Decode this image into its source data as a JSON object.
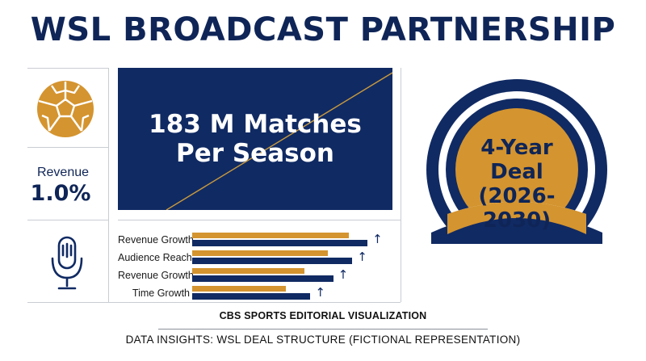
{
  "header": {
    "title": "WSL BROADCAST PARTNERSHIP"
  },
  "left_panel": {
    "ball_icon": "soccer-ball-icon",
    "revenue_label": "Revenue",
    "revenue_value": "1.0%",
    "mic_icon": "microphone-icon"
  },
  "stat_panel": {
    "line1": "183 M Matches",
    "line2": "Per Season"
  },
  "bars": [
    {
      "label": "Revenue Growth",
      "gold": 0.82,
      "navy": 0.92
    },
    {
      "label": "Audience Reach",
      "gold": 0.71,
      "navy": 0.84
    },
    {
      "label": "Revenue Growth",
      "gold": 0.59,
      "navy": 0.74
    },
    {
      "label": "Time Growth",
      "gold": 0.49,
      "navy": 0.62
    }
  ],
  "badge": {
    "line1": "4-Year",
    "line2": "Deal",
    "line3": "(2026-",
    "line4": "2030)"
  },
  "footer": {
    "main": "CBS SPORTS EDITORIAL VISUALIZATION",
    "sub": "DATA INSIGHTS: WSL DEAL STRUCTURE (FICTIONAL REPRESENTATION)"
  },
  "colors": {
    "navy": "#102a63",
    "gold": "#d4942f"
  }
}
